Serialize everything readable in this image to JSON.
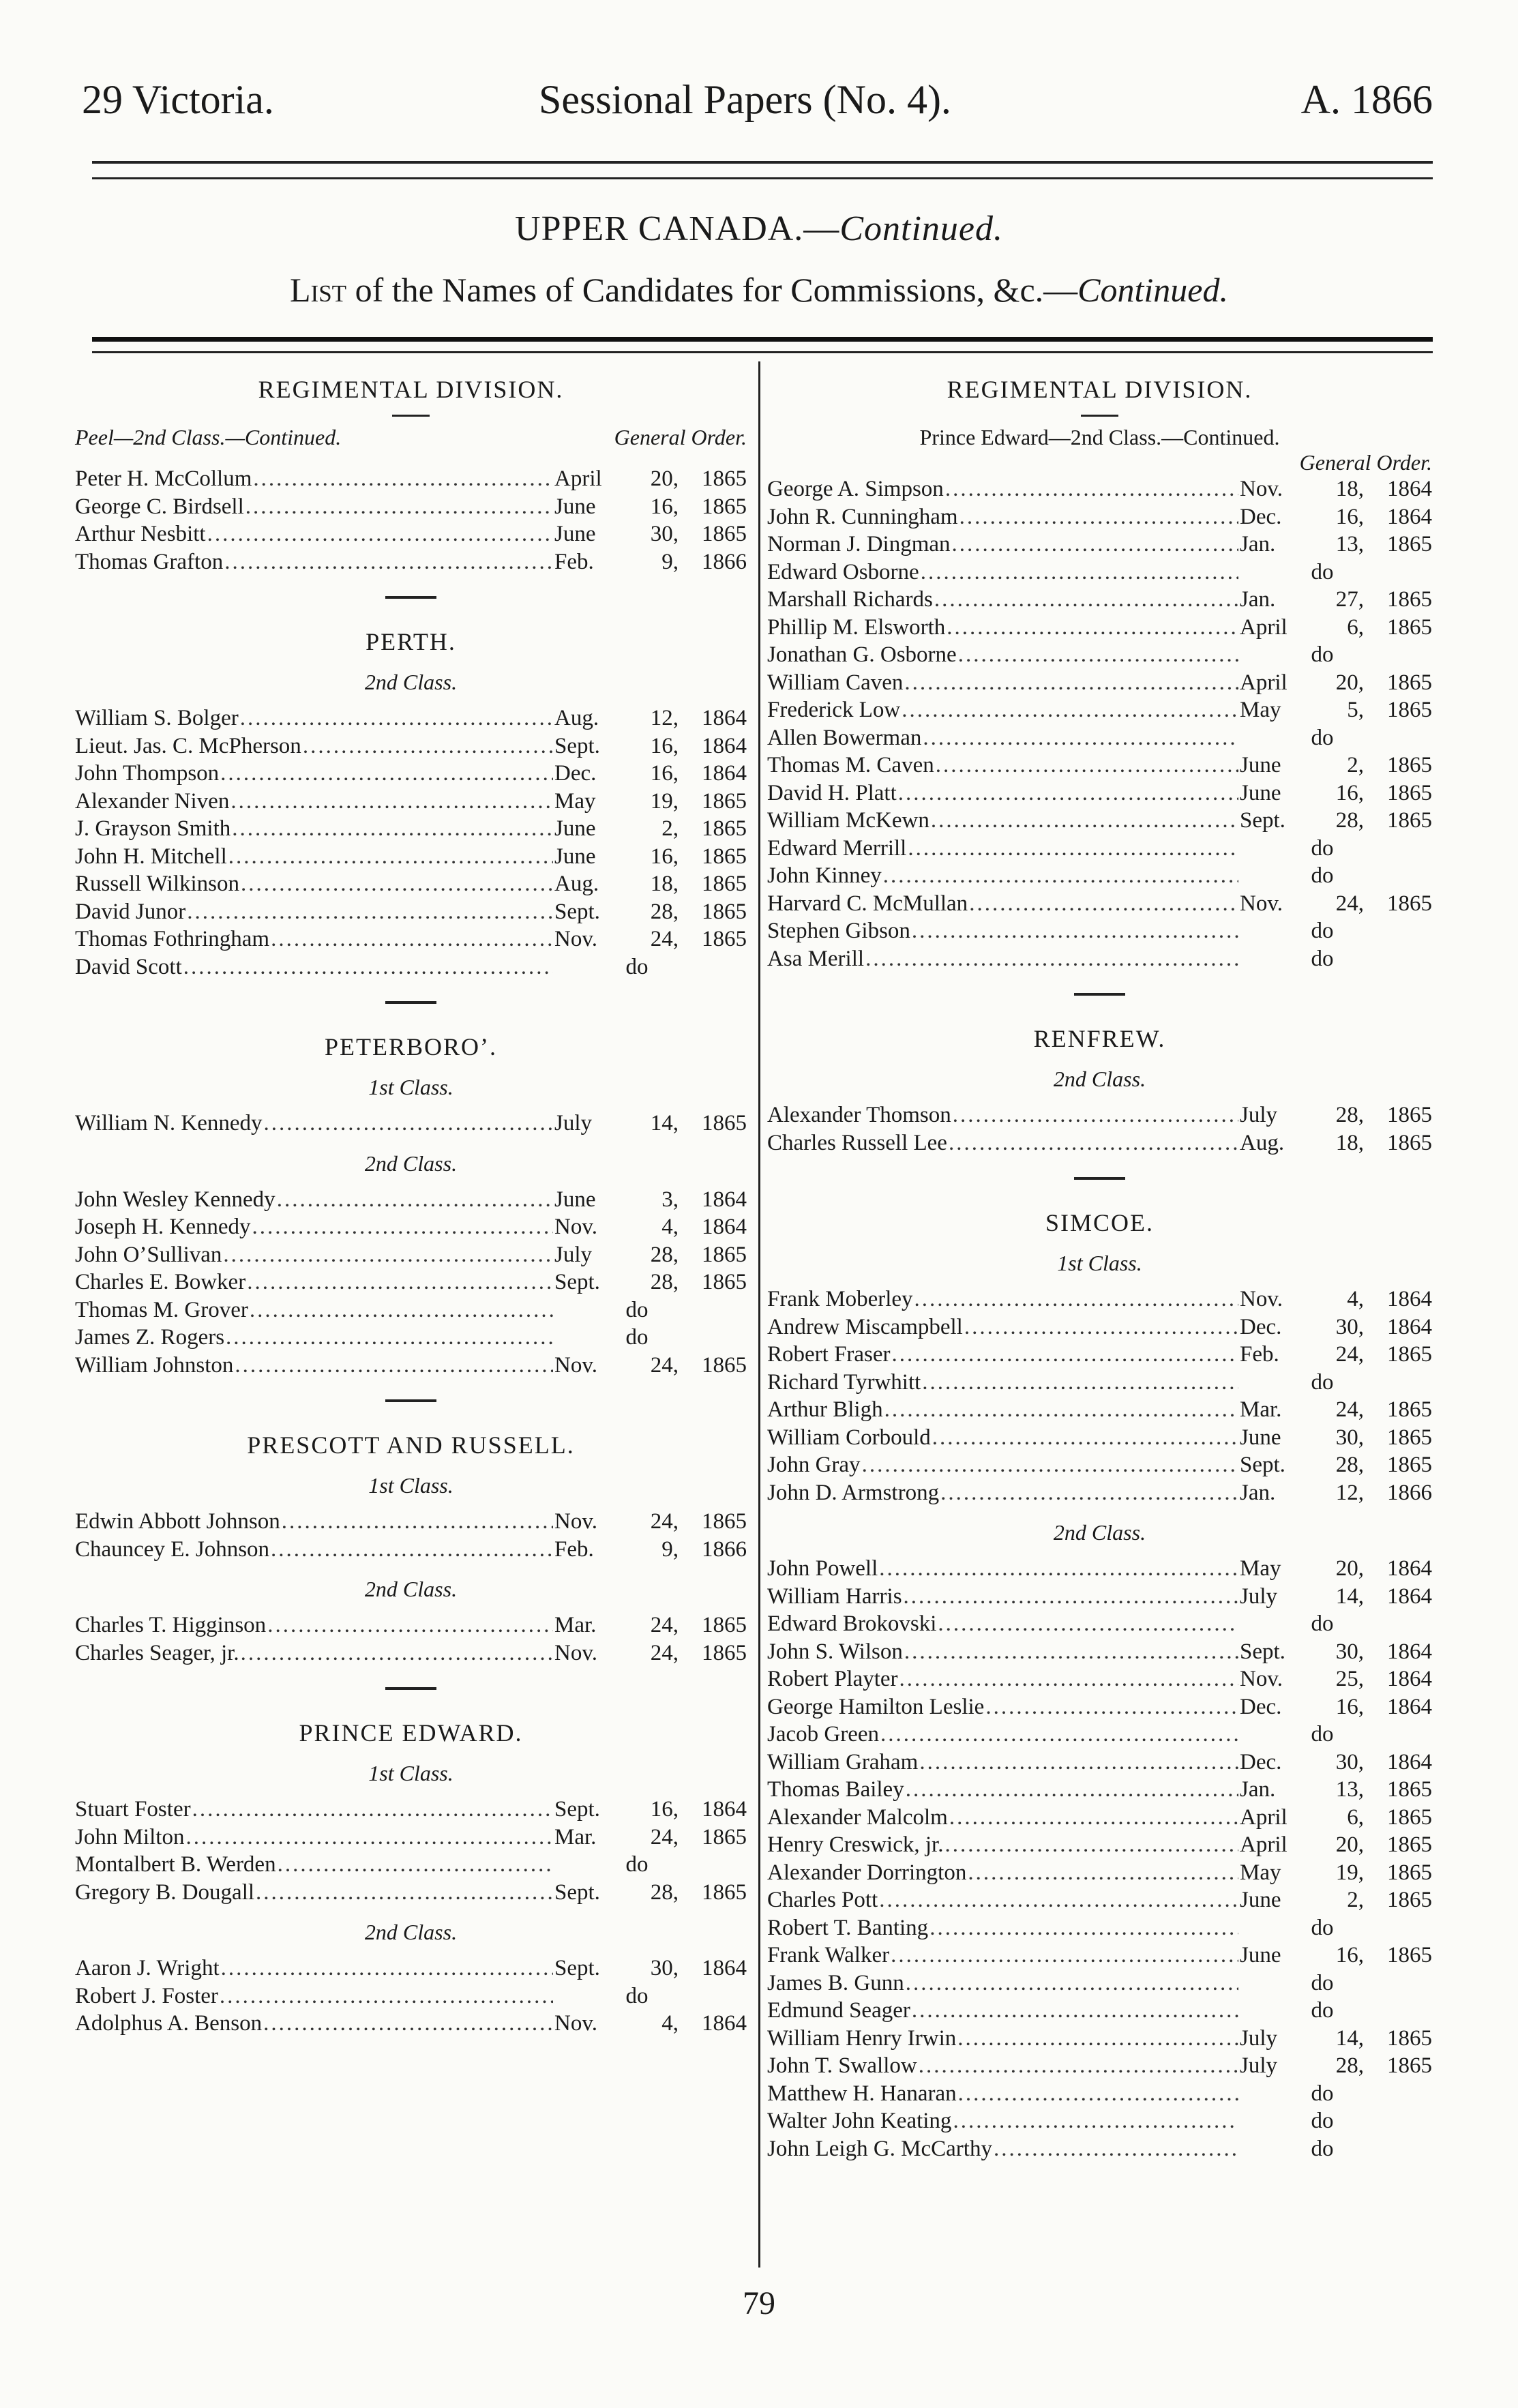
{
  "running_head": {
    "left": "29 Victoria.",
    "center": "Sessional Papers (No. 4).",
    "right": "A. 1866"
  },
  "title": {
    "main": "UPPER CANADA.—",
    "main_italic": "Continued.",
    "list_sc": "List",
    "list_rest": " of the Names of Candidates for Commissions, &c.—",
    "list_italic": "Continued."
  },
  "page_number": "79",
  "columns": [
    {
      "sections": [
        {
          "heading": "REGIMENTAL DIVISION.",
          "subheading": "Peel—2nd Class.—Continued.",
          "order_label": "General Order.",
          "groups": [
            {
              "class": "",
              "entries": [
                {
                  "name": "Peter H. McCollum",
                  "date": [
                    "April",
                    "20,",
                    "1865"
                  ]
                },
                {
                  "name": "George C. Birdsell",
                  "date": [
                    "June",
                    "16,",
                    "1865"
                  ]
                },
                {
                  "name": "Arthur Nesbitt",
                  "date": [
                    "June",
                    "30,",
                    "1865"
                  ]
                },
                {
                  "name": "Thomas Grafton",
                  "date": [
                    "Feb.",
                    "9,",
                    "1866"
                  ]
                }
              ]
            }
          ]
        },
        {
          "heading": "PERTH.",
          "groups": [
            {
              "class": "2nd Class.",
              "entries": [
                {
                  "name": "William S. Bolger",
                  "date": [
                    "Aug.",
                    "12,",
                    "1864"
                  ]
                },
                {
                  "name": "Lieut. Jas. C. McPherson",
                  "date": [
                    "Sept.",
                    "16,",
                    "1864"
                  ]
                },
                {
                  "name": "John Thompson",
                  "date": [
                    "Dec.",
                    "16,",
                    "1864"
                  ]
                },
                {
                  "name": "Alexander Niven",
                  "date": [
                    "May",
                    "19,",
                    "1865"
                  ]
                },
                {
                  "name": "J. Grayson Smith",
                  "date": [
                    "June",
                    "2,",
                    "1865"
                  ]
                },
                {
                  "name": "John H. Mitchell",
                  "date": [
                    "June",
                    "16,",
                    "1865"
                  ]
                },
                {
                  "name": "Russell Wilkinson",
                  "date": [
                    "Aug.",
                    "18,",
                    "1865"
                  ]
                },
                {
                  "name": "David Junor",
                  "date": [
                    "Sept.",
                    "28,",
                    "1865"
                  ]
                },
                {
                  "name": "Thomas Fothringham",
                  "date": [
                    "Nov.",
                    "24,",
                    "1865"
                  ]
                },
                {
                  "name": "David Scott",
                  "ditto": "do"
                }
              ]
            }
          ]
        },
        {
          "heading": "PETERBORO’.",
          "groups": [
            {
              "class": "1st Class.",
              "entries": [
                {
                  "name": "William N. Kennedy",
                  "date": [
                    "July",
                    "14,",
                    "1865"
                  ]
                }
              ]
            },
            {
              "class": "2nd Class.",
              "entries": [
                {
                  "name": "John Wesley Kennedy",
                  "date": [
                    "June",
                    "3,",
                    "1864"
                  ]
                },
                {
                  "name": "Joseph H. Kennedy",
                  "date": [
                    "Nov.",
                    "4,",
                    "1864"
                  ]
                },
                {
                  "name": "John O’Sullivan",
                  "date": [
                    "July",
                    "28,",
                    "1865"
                  ]
                },
                {
                  "name": "Charles E. Bowker",
                  "date": [
                    "Sept.",
                    "28,",
                    "1865"
                  ]
                },
                {
                  "name": "Thomas M. Grover",
                  "ditto": "do"
                },
                {
                  "name": "James Z. Rogers",
                  "ditto": "do"
                },
                {
                  "name": "William Johnston",
                  "date": [
                    "Nov.",
                    "24,",
                    "1865"
                  ]
                }
              ]
            }
          ]
        },
        {
          "heading": "PRESCOTT AND RUSSELL.",
          "groups": [
            {
              "class": "1st Class.",
              "entries": [
                {
                  "name": "Edwin Abbott Johnson",
                  "date": [
                    "Nov.",
                    "24,",
                    "1865"
                  ]
                },
                {
                  "name": "Chauncey E. Johnson",
                  "date": [
                    "Feb.",
                    "9,",
                    "1866"
                  ]
                }
              ]
            },
            {
              "class": "2nd Class.",
              "entries": [
                {
                  "name": "Charles T. Higginson",
                  "date": [
                    "Mar.",
                    "24,",
                    "1865"
                  ]
                },
                {
                  "name": "Charles Seager, jr.",
                  "date": [
                    "Nov.",
                    "24,",
                    "1865"
                  ]
                }
              ]
            }
          ]
        },
        {
          "heading": "PRINCE EDWARD.",
          "groups": [
            {
              "class": "1st Class.",
              "entries": [
                {
                  "name": "Stuart Foster",
                  "date": [
                    "Sept.",
                    "16,",
                    "1864"
                  ]
                },
                {
                  "name": "John Milton",
                  "date": [
                    "Mar.",
                    "24,",
                    "1865"
                  ]
                },
                {
                  "name": "Montalbert B. Werden",
                  "ditto": "do"
                },
                {
                  "name": "Gregory B. Dougall",
                  "date": [
                    "Sept.",
                    "28,",
                    "1865"
                  ]
                }
              ]
            },
            {
              "class": "2nd Class.",
              "entries": [
                {
                  "name": "Aaron J. Wright",
                  "date": [
                    "Sept.",
                    "30,",
                    "1864"
                  ]
                },
                {
                  "name": "Robert J. Foster",
                  "ditto": "do"
                },
                {
                  "name": "Adolphus A. Benson",
                  "date": [
                    "Nov.",
                    "4,",
                    "1864"
                  ]
                }
              ]
            }
          ]
        }
      ]
    },
    {
      "sections": [
        {
          "heading": "REGIMENTAL DIVISION.",
          "subheading_center": "Prince Edward—2nd Class.—Continued.",
          "order_label_right": "General Order.",
          "groups": [
            {
              "class": "",
              "entries": [
                {
                  "name": "George A. Simpson",
                  "date": [
                    "Nov.",
                    "18,",
                    "1864"
                  ]
                },
                {
                  "name": "John R. Cunningham",
                  "date": [
                    "Dec.",
                    "16,",
                    "1864"
                  ]
                },
                {
                  "name": "Norman J. Dingman",
                  "date": [
                    "Jan.",
                    "13,",
                    "1865"
                  ]
                },
                {
                  "name": "Edward Osborne",
                  "ditto": "do"
                },
                {
                  "name": "Marshall Richards",
                  "date": [
                    "Jan.",
                    "27,",
                    "1865"
                  ]
                },
                {
                  "name": "Phillip M. Elsworth",
                  "date": [
                    "April",
                    "6,",
                    "1865"
                  ]
                },
                {
                  "name": "Jonathan G. Osborne",
                  "ditto": "do"
                },
                {
                  "name": "William Caven",
                  "date": [
                    "April",
                    "20,",
                    "1865"
                  ]
                },
                {
                  "name": "Frederick Low",
                  "date": [
                    "May",
                    "5,",
                    "1865"
                  ]
                },
                {
                  "name": "Allen Bowerman",
                  "ditto": "do"
                },
                {
                  "name": "Thomas M. Caven",
                  "date": [
                    "June",
                    "2,",
                    "1865"
                  ]
                },
                {
                  "name": "David H. Platt",
                  "date": [
                    "June",
                    "16,",
                    "1865"
                  ]
                },
                {
                  "name": "William McKewn",
                  "date": [
                    "Sept.",
                    "28,",
                    "1865"
                  ]
                },
                {
                  "name": "Edward Merrill",
                  "ditto": "do"
                },
                {
                  "name": "John Kinney",
                  "ditto": "do"
                },
                {
                  "name": "Harvard C. McMullan",
                  "date": [
                    "Nov.",
                    "24,",
                    "1865"
                  ]
                },
                {
                  "name": "Stephen Gibson",
                  "ditto": "do"
                },
                {
                  "name": "Asa Merill",
                  "ditto": "do"
                }
              ]
            }
          ]
        },
        {
          "heading": "RENFREW.",
          "groups": [
            {
              "class": "2nd Class.",
              "entries": [
                {
                  "name": "Alexander Thomson",
                  "date": [
                    "July",
                    "28,",
                    "1865"
                  ]
                },
                {
                  "name": "Charles Russell Lee",
                  "date": [
                    "Aug.",
                    "18,",
                    "1865"
                  ]
                }
              ]
            }
          ]
        },
        {
          "heading": "SIMCOE.",
          "groups": [
            {
              "class": "1st Class.",
              "entries": [
                {
                  "name": "Frank Moberley",
                  "date": [
                    "Nov.",
                    "4,",
                    "1864"
                  ]
                },
                {
                  "name": "Andrew Miscampbell",
                  "date": [
                    "Dec.",
                    "30,",
                    "1864"
                  ]
                },
                {
                  "name": "Robert Fraser",
                  "date": [
                    "Feb.",
                    "24,",
                    "1865"
                  ]
                },
                {
                  "name": "Richard Tyrwhitt",
                  "ditto": "do"
                },
                {
                  "name": "Arthur Bligh",
                  "date": [
                    "Mar.",
                    "24,",
                    "1865"
                  ]
                },
                {
                  "name": "William Corbould",
                  "date": [
                    "June",
                    "30,",
                    "1865"
                  ]
                },
                {
                  "name": "John Gray",
                  "date": [
                    "Sept.",
                    "28,",
                    "1865"
                  ]
                },
                {
                  "name": "John D. Armstrong",
                  "date": [
                    "Jan.",
                    "12,",
                    "1866"
                  ]
                }
              ]
            },
            {
              "class": "2nd Class.",
              "entries": [
                {
                  "name": "John Powell",
                  "date": [
                    "May",
                    "20,",
                    "1864"
                  ]
                },
                {
                  "name": "William Harris",
                  "date": [
                    "July",
                    "14,",
                    "1864"
                  ]
                },
                {
                  "name": "Edward Brokovski",
                  "ditto": "do"
                },
                {
                  "name": "John S. Wilson",
                  "date": [
                    "Sept.",
                    "30,",
                    "1864"
                  ]
                },
                {
                  "name": "Robert Playter",
                  "date": [
                    "Nov.",
                    "25,",
                    "1864"
                  ]
                },
                {
                  "name": "George Hamilton Leslie",
                  "date": [
                    "Dec.",
                    "16,",
                    "1864"
                  ]
                },
                {
                  "name": "Jacob Green",
                  "ditto": "do"
                },
                {
                  "name": "William Graham",
                  "date": [
                    "Dec.",
                    "30,",
                    "1864"
                  ]
                },
                {
                  "name": "Thomas Bailey",
                  "date": [
                    "Jan.",
                    "13,",
                    "1865"
                  ]
                },
                {
                  "name": "Alexander Malcolm",
                  "date": [
                    "April",
                    "6,",
                    "1865"
                  ]
                },
                {
                  "name": "Henry Creswick, jr.",
                  "date": [
                    "April",
                    "20,",
                    "1865"
                  ]
                },
                {
                  "name": "Alexander Dorrington",
                  "date": [
                    "May",
                    "19,",
                    "1865"
                  ]
                },
                {
                  "name": "Charles Pott",
                  "date": [
                    "June",
                    "2,",
                    "1865"
                  ]
                },
                {
                  "name": "Robert T. Banting",
                  "ditto": "do"
                },
                {
                  "name": "Frank Walker",
                  "date": [
                    "June",
                    "16,",
                    "1865"
                  ]
                },
                {
                  "name": "James B. Gunn",
                  "ditto": "do"
                },
                {
                  "name": "Edmund Seager",
                  "ditto": "do"
                },
                {
                  "name": "William Henry Irwin",
                  "date": [
                    "July",
                    "14,",
                    "1865"
                  ]
                },
                {
                  "name": "John T. Swallow",
                  "date": [
                    "July",
                    "28,",
                    "1865"
                  ]
                },
                {
                  "name": "Matthew H. Hanaran",
                  "ditto": "do"
                },
                {
                  "name": "Walter John Keating",
                  "ditto": "do"
                },
                {
                  "name": "John Leigh G. McCarthy",
                  "ditto": "do"
                }
              ]
            }
          ]
        }
      ]
    }
  ]
}
